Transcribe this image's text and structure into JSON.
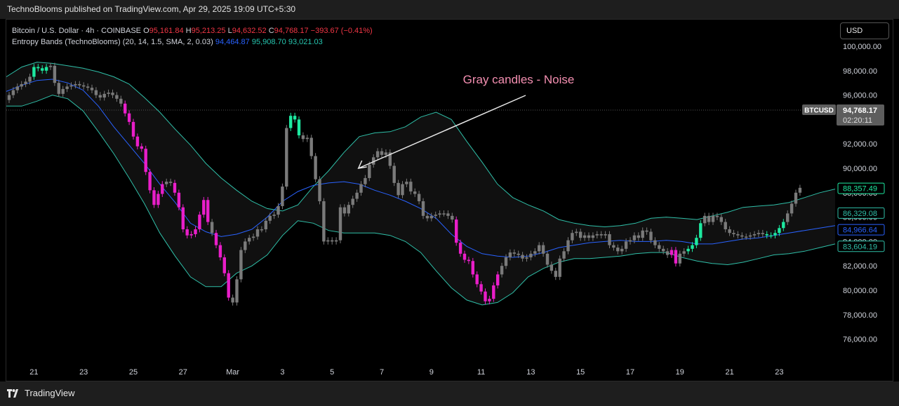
{
  "header": {
    "text": "TechnoBlooms published on TradingView.com, Apr 29, 2025 19:09 UTC+5:30"
  },
  "legend": {
    "symbol": "Bitcoin / U.S. Dollar · 4h · COINBASE",
    "o_label": "O",
    "o_value": "95,161.84",
    "h_label": "H",
    "h_value": "95,213.25",
    "l_label": "L",
    "l_value": "94,632.52",
    "c_label": "C",
    "c_value": "94,768.17",
    "change": "−393.67 (−0.41%)",
    "indicator": "Entropy Bands (TechnoBlooms) (20, 14, 1.5, SMA, 2, 0.03)",
    "ind_v1": "94,464.87",
    "ind_v2": "95,908.70",
    "ind_v3": "93,021.03"
  },
  "currency_button": "USD",
  "footer": {
    "brand": "TradingView"
  },
  "colors": {
    "background": "#000000",
    "gray_candle": "#7a7a7a",
    "green_candle": "#1de9a0",
    "magenta_candle": "#e91ec9",
    "band_line": "#2fbfa8",
    "mid_line": "#2962ff",
    "annotation": "#f48fb1",
    "band_fill": "#101010"
  },
  "chart_data": {
    "type": "candlestick",
    "title": "",
    "ylim": [
      74500,
      101500
    ],
    "y_ticks": [
      {
        "value": 100000,
        "label": "100,000.00"
      },
      {
        "value": 98000,
        "label": "98,000.00"
      },
      {
        "value": 96000,
        "label": "96,000.00"
      },
      {
        "value": 94000,
        "label": "94,000.00"
      },
      {
        "value": 92000,
        "label": "92,000.00"
      },
      {
        "value": 90000,
        "label": "90,000.00"
      },
      {
        "value": 88000,
        "label": "88,000.00"
      },
      {
        "value": 86000,
        "label": "86,000.00"
      },
      {
        "value": 84000,
        "label": "84,000.00"
      },
      {
        "value": 82000,
        "label": "82,000.00"
      },
      {
        "value": 80000,
        "label": "80,000.00"
      },
      {
        "value": 78000,
        "label": "78,000.00"
      },
      {
        "value": 76000,
        "label": "76,000.00"
      }
    ],
    "x_ticks": [
      {
        "bar": 6,
        "label": "21"
      },
      {
        "bar": 18,
        "label": "23"
      },
      {
        "bar": 30,
        "label": "25"
      },
      {
        "bar": 42,
        "label": "27"
      },
      {
        "bar": 54,
        "label": "Mar"
      },
      {
        "bar": 66,
        "label": "3"
      },
      {
        "bar": 78,
        "label": "5"
      },
      {
        "bar": 90,
        "label": "7"
      },
      {
        "bar": 102,
        "label": "9"
      },
      {
        "bar": 114,
        "label": "11"
      },
      {
        "bar": 126,
        "label": "13"
      },
      {
        "bar": 138,
        "label": "15"
      },
      {
        "bar": 150,
        "label": "17"
      },
      {
        "bar": 162,
        "label": "19"
      },
      {
        "bar": 174,
        "label": "21"
      },
      {
        "bar": 186,
        "label": "23"
      }
    ],
    "bars_total": 200,
    "closes": [
      96000,
      96400,
      96700,
      96900,
      97100,
      97500,
      98300,
      98200,
      98000,
      98300,
      98400,
      97000,
      96100,
      96500,
      96700,
      96800,
      96900,
      96800,
      96700,
      96600,
      96400,
      96000,
      95800,
      96100,
      96200,
      96000,
      95700,
      95300,
      94500,
      93800,
      92600,
      91800,
      91600,
      89700,
      88200,
      87000,
      87900,
      88700,
      88900,
      88800,
      88000,
      86800,
      85000,
      84500,
      84600,
      85000,
      86200,
      87400,
      85600,
      84700,
      83700,
      82700,
      81400,
      79400,
      79000,
      80900,
      83300,
      84000,
      84300,
      84400,
      85000,
      85000,
      85700,
      86100,
      86200,
      86900,
      88500,
      93300,
      94300,
      94000,
      92700,
      92400,
      92500,
      91000,
      89100,
      87300,
      84000,
      84100,
      84000,
      84100,
      86800,
      86300,
      87000,
      87500,
      88000,
      88700,
      89200,
      90300,
      90900,
      91400,
      91100,
      91300,
      90200,
      88800,
      87800,
      88700,
      88900,
      88100,
      87900,
      87300,
      86100,
      85900,
      86100,
      86200,
      86300,
      86300,
      86100,
      85800,
      83900,
      83000,
      82500,
      82400,
      81300,
      80500,
      79900,
      79100,
      79300,
      80400,
      81300,
      82000,
      82700,
      83100,
      83000,
      82900,
      82600,
      82700,
      83000,
      83200,
      83700,
      83000,
      82100,
      81600,
      81100,
      82600,
      83200,
      84100,
      84700,
      84800,
      84300,
      84500,
      84300,
      84500,
      84600,
      84500,
      84600,
      83700,
      83500,
      83200,
      83400,
      84000,
      84100,
      84500,
      84300,
      84900,
      84800,
      84100,
      83700,
      83400,
      83200,
      82900,
      83300,
      82200,
      83000,
      83200,
      83400,
      83700,
      84300,
      85500,
      86100,
      85600,
      86100,
      86000,
      85600,
      85000,
      84700,
      84600,
      84500,
      84400,
      84400,
      84500,
      84600,
      84700,
      84600,
      84500,
      84500,
      84700,
      85100,
      85600,
      86300,
      87100,
      88000,
      88400
    ],
    "colors_by_bar": "g:6-9,68-70,164-167,183-187; m:28-37,40-48,50-53,108-118,160-161; rest gray",
    "band_upper_samples": [
      97500,
      98300,
      98700,
      98600,
      98400,
      98200,
      97900,
      97500,
      96900,
      95800,
      94600,
      93200,
      91900,
      90400,
      89200,
      88200,
      87300,
      86700,
      86500,
      87000,
      88500,
      89800,
      91300,
      92600,
      92900,
      93000,
      93400,
      94200,
      94600,
      94000,
      92200,
      90500,
      88700,
      87600,
      87000,
      86500,
      85800,
      85500,
      85300,
      85200,
      85300,
      85500,
      85900,
      86000,
      85900,
      85800,
      86100,
      86400,
      86800,
      86900,
      87000,
      87200,
      87600,
      88000,
      88300
    ],
    "band_mid_samples": [
      96300,
      96800,
      97200,
      97300,
      97000,
      96400,
      95100,
      93400,
      91900,
      90400,
      88700,
      87200,
      85500,
      84800,
      84400,
      84600,
      85000,
      86000,
      87300,
      88100,
      88600,
      88800,
      88900,
      88700,
      88200,
      87800,
      87300,
      86700,
      85900,
      84600,
      83600,
      83000,
      82800,
      82700,
      82800,
      83100,
      83500,
      83700,
      83900,
      84000,
      84100,
      84000,
      84000,
      84100,
      84000,
      83800,
      83800,
      84000,
      84200,
      84300,
      84500,
      84700,
      84900,
      85100,
      85300
    ],
    "band_lower_samples": [
      95100,
      95100,
      95500,
      96000,
      95700,
      94700,
      93000,
      91200,
      89200,
      87100,
      84700,
      82800,
      81100,
      80300,
      80300,
      81400,
      82000,
      82900,
      84500,
      85700,
      85500,
      84900,
      84700,
      84700,
      84700,
      84500,
      84000,
      83100,
      81600,
      80200,
      79200,
      78800,
      79000,
      79800,
      81100,
      81800,
      82300,
      82600,
      82600,
      82700,
      82800,
      83000,
      83100,
      83100,
      82700,
      82400,
      82200,
      82100,
      82300,
      82600,
      82900,
      83000,
      83200,
      83500,
      83800
    ],
    "last_price": {
      "symbol": "BTCUSD",
      "value": "94,768.17",
      "countdown": "02:20:11"
    },
    "price_labels": [
      {
        "value": 88357.49,
        "label": "88,357.49",
        "color": "#1de9a0"
      },
      {
        "value": 86329.08,
        "label": "86,329.08",
        "color": "#2fbfa8"
      },
      {
        "value": 84966.64,
        "label": "84,966.64",
        "color": "#2962ff"
      },
      {
        "value": 83604.19,
        "label": "83,604.19",
        "color": "#2fbfa8"
      }
    ],
    "annotation": {
      "text": "Gray candles - Noise",
      "target_bar": 83
    }
  }
}
